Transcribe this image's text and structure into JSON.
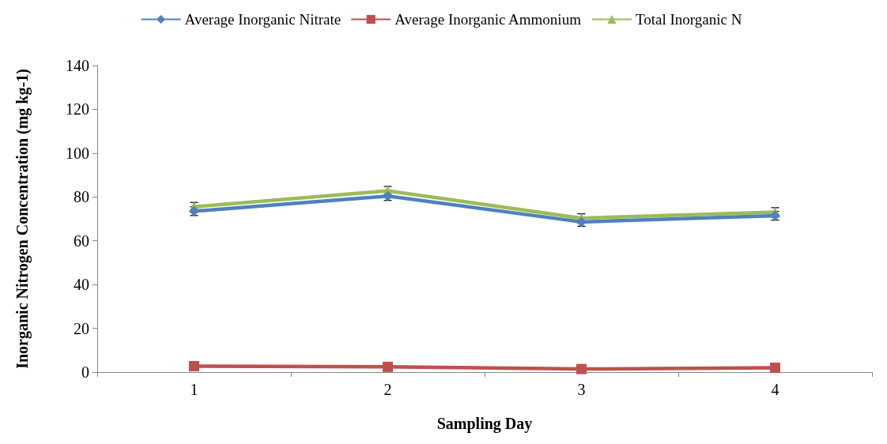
{
  "chart_data": {
    "type": "line",
    "xlabel": "Sampling Day",
    "ylabel": "Inorganic Nitrogen Concentration (mg kg-1)",
    "categories": [
      "1",
      "2",
      "3",
      "4"
    ],
    "series": [
      {
        "name": "Average Inorganic Nitrate",
        "color": "#4f81bd",
        "marker": "diamond",
        "values": [
          73.5,
          80.4,
          68.6,
          71.4
        ],
        "errors": [
          2,
          2,
          2,
          2
        ]
      },
      {
        "name": "Average Inorganic Ammonium",
        "color": "#c0504d",
        "marker": "square",
        "values": [
          2.7,
          2.4,
          1.4,
          2.0
        ]
      },
      {
        "name": "Total Inorganic N",
        "color": "#9bbb59",
        "marker": "triangle",
        "values": [
          75.5,
          82.8,
          70.3,
          73.1
        ],
        "errors": [
          2,
          2,
          2,
          2
        ]
      }
    ],
    "ylim": [
      0,
      140
    ],
    "yticks": [
      0,
      20,
      40,
      60,
      80,
      100,
      120,
      140
    ],
    "grid": false,
    "legend": "top",
    "line_style": "solid"
  }
}
